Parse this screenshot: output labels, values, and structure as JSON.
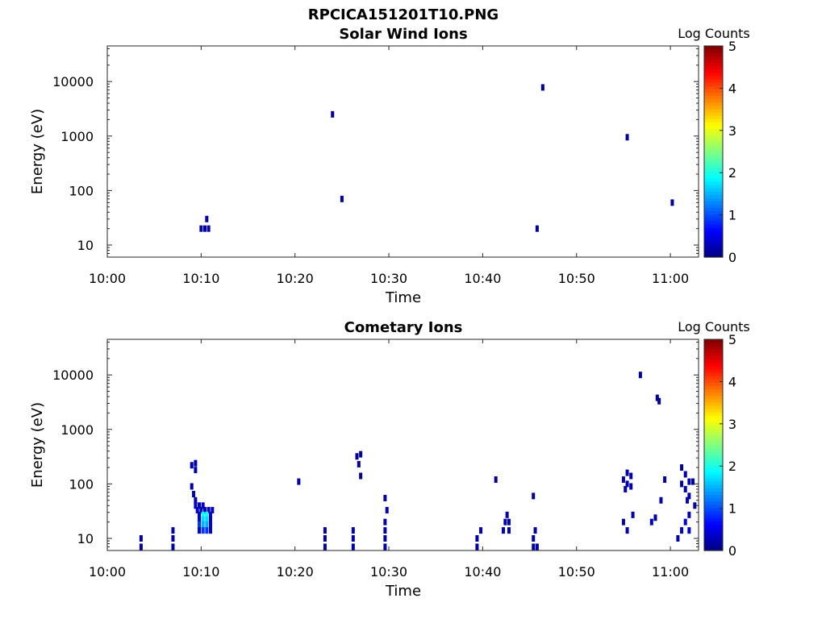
{
  "figure_title": "RPCICA151201T10.PNG",
  "colorbar": {
    "label": "Log Counts",
    "ticks": [
      "0",
      "1",
      "2",
      "3",
      "4",
      "5"
    ],
    "range": [
      0,
      5
    ],
    "colormap": "jet"
  },
  "chart_data": [
    {
      "type": "heatmap",
      "title": "Solar Wind Ions",
      "xlabel": "Time",
      "ylabel": "Energy (eV)",
      "x_ticks": [
        "10:00",
        "10:10",
        "10:20",
        "10:30",
        "10:40",
        "10:50",
        "11:00"
      ],
      "y_ticks": [
        "10",
        "100",
        "1000",
        "10000"
      ],
      "xlim": [
        "10:00",
        "11:03"
      ],
      "ylim": [
        6,
        45000
      ],
      "y_scale": "log",
      "grid": false,
      "cells": [
        {
          "t": "10:10.0",
          "e": 20,
          "v": 0.2
        },
        {
          "t": "10:10.4",
          "e": 20,
          "v": 0.2
        },
        {
          "t": "10:10.8",
          "e": 20,
          "v": 0.2
        },
        {
          "t": "10:10.6",
          "e": 30,
          "v": 0.2
        },
        {
          "t": "10:24.0",
          "e": 2500,
          "v": 0.1
        },
        {
          "t": "10:25.0",
          "e": 70,
          "v": 0.1
        },
        {
          "t": "10:45.8",
          "e": 20,
          "v": 0.1
        },
        {
          "t": "10:46.4",
          "e": 7800,
          "v": 0.1
        },
        {
          "t": "10:55.4",
          "e": 950,
          "v": 0.1
        },
        {
          "t": "11:00.2",
          "e": 60,
          "v": 0.1
        }
      ]
    },
    {
      "type": "heatmap",
      "title": "Cometary Ions",
      "xlabel": "Time",
      "ylabel": "Energy (eV)",
      "x_ticks": [
        "10:00",
        "10:10",
        "10:20",
        "10:30",
        "10:40",
        "10:50",
        "11:00"
      ],
      "y_ticks": [
        "10",
        "100",
        "1000",
        "10000"
      ],
      "xlim": [
        "10:00",
        "11:03"
      ],
      "ylim": [
        6,
        45000
      ],
      "y_scale": "log",
      "grid": false,
      "cells": [
        {
          "t": "10:03.6",
          "e": 7,
          "v": 0.2
        },
        {
          "t": "10:03.6",
          "e": 10,
          "v": 0.2
        },
        {
          "t": "10:07.0",
          "e": 7,
          "v": 0.2
        },
        {
          "t": "10:07.0",
          "e": 10,
          "v": 0.2
        },
        {
          "t": "10:07.0",
          "e": 14,
          "v": 0.2
        },
        {
          "t": "10:09.0",
          "e": 220,
          "v": 0.2
        },
        {
          "t": "10:09.4",
          "e": 240,
          "v": 0.2
        },
        {
          "t": "10:09.4",
          "e": 180,
          "v": 0.2
        },
        {
          "t": "10:09.0",
          "e": 90,
          "v": 0.2
        },
        {
          "t": "10:09.2",
          "e": 65,
          "v": 0.2
        },
        {
          "t": "10:09.4",
          "e": 50,
          "v": 0.2
        },
        {
          "t": "10:09.4",
          "e": 40,
          "v": 0.3
        },
        {
          "t": "10:09.8",
          "e": 40,
          "v": 0.3
        },
        {
          "t": "10:10.2",
          "e": 40,
          "v": 0.3
        },
        {
          "t": "10:09.6",
          "e": 33,
          "v": 0.3
        },
        {
          "t": "10:10.0",
          "e": 33,
          "v": 0.3
        },
        {
          "t": "10:10.4",
          "e": 33,
          "v": 0.3
        },
        {
          "t": "10:10.8",
          "e": 33,
          "v": 0.3
        },
        {
          "t": "10:11.2",
          "e": 33,
          "v": 0.3
        },
        {
          "t": "10:09.8",
          "e": 27,
          "v": 0.4
        },
        {
          "t": "10:10.2",
          "e": 27,
          "v": 1.9
        },
        {
          "t": "10:10.6",
          "e": 27,
          "v": 1.9
        },
        {
          "t": "10:11.0",
          "e": 27,
          "v": 0.4
        },
        {
          "t": "10:09.8",
          "e": 22,
          "v": 0.4
        },
        {
          "t": "10:10.2",
          "e": 22,
          "v": 1.7
        },
        {
          "t": "10:10.6",
          "e": 22,
          "v": 1.7
        },
        {
          "t": "10:11.0",
          "e": 22,
          "v": 0.4
        },
        {
          "t": "10:09.8",
          "e": 18,
          "v": 0.9
        },
        {
          "t": "10:10.2",
          "e": 18,
          "v": 1.5
        },
        {
          "t": "10:10.6",
          "e": 18,
          "v": 1.5
        },
        {
          "t": "10:11.0",
          "e": 18,
          "v": 0.4
        },
        {
          "t": "10:09.8",
          "e": 14,
          "v": 0.4
        },
        {
          "t": "10:10.2",
          "e": 14,
          "v": 0.9
        },
        {
          "t": "10:10.6",
          "e": 14,
          "v": 0.9
        },
        {
          "t": "10:11.0",
          "e": 14,
          "v": 0.4
        },
        {
          "t": "10:20.4",
          "e": 110,
          "v": 0.2
        },
        {
          "t": "10:23.2",
          "e": 7,
          "v": 0.2
        },
        {
          "t": "10:23.2",
          "e": 10,
          "v": 0.2
        },
        {
          "t": "10:23.2",
          "e": 14,
          "v": 0.2
        },
        {
          "t": "10:26.2",
          "e": 7,
          "v": 0.2
        },
        {
          "t": "10:26.2",
          "e": 10,
          "v": 0.2
        },
        {
          "t": "10:26.2",
          "e": 14,
          "v": 0.2
        },
        {
          "t": "10:26.6",
          "e": 320,
          "v": 0.1
        },
        {
          "t": "10:27.0",
          "e": 350,
          "v": 0.1
        },
        {
          "t": "10:26.8",
          "e": 230,
          "v": 0.1
        },
        {
          "t": "10:27.0",
          "e": 140,
          "v": 0.1
        },
        {
          "t": "10:29.6",
          "e": 55,
          "v": 0.2
        },
        {
          "t": "10:29.6",
          "e": 20,
          "v": 0.2
        },
        {
          "t": "10:29.6",
          "e": 14,
          "v": 0.2
        },
        {
          "t": "10:29.6",
          "e": 10,
          "v": 0.2
        },
        {
          "t": "10:29.6",
          "e": 7,
          "v": 0.2
        },
        {
          "t": "10:29.8",
          "e": 33,
          "v": 0.2
        },
        {
          "t": "10:39.4",
          "e": 7,
          "v": 0.2
        },
        {
          "t": "10:39.4",
          "e": 10,
          "v": 0.2
        },
        {
          "t": "10:39.8",
          "e": 14,
          "v": 0.2
        },
        {
          "t": "10:41.4",
          "e": 120,
          "v": 0.1
        },
        {
          "t": "10:42.2",
          "e": 14,
          "v": 0.2
        },
        {
          "t": "10:42.4",
          "e": 20,
          "v": 0.2
        },
        {
          "t": "10:42.8",
          "e": 20,
          "v": 0.2
        },
        {
          "t": "10:42.8",
          "e": 14,
          "v": 0.2
        },
        {
          "t": "10:42.6",
          "e": 27,
          "v": 0.2
        },
        {
          "t": "10:45.4",
          "e": 60,
          "v": 0.1
        },
        {
          "t": "10:45.4",
          "e": 7,
          "v": 0.2
        },
        {
          "t": "10:45.4",
          "e": 10,
          "v": 0.2
        },
        {
          "t": "10:45.6",
          "e": 14,
          "v": 0.2
        },
        {
          "t": "10:45.8",
          "e": 7,
          "v": 0.2
        },
        {
          "t": "10:55.0",
          "e": 120,
          "v": 0.2
        },
        {
          "t": "10:55.4",
          "e": 160,
          "v": 0.2
        },
        {
          "t": "10:55.8",
          "e": 140,
          "v": 0.2
        },
        {
          "t": "10:55.4",
          "e": 100,
          "v": 0.2
        },
        {
          "t": "10:55.8",
          "e": 90,
          "v": 0.2
        },
        {
          "t": "10:55.2",
          "e": 80,
          "v": 0.2
        },
        {
          "t": "10:55.0",
          "e": 20,
          "v": 0.2
        },
        {
          "t": "10:55.4",
          "e": 14,
          "v": 0.2
        },
        {
          "t": "10:56.0",
          "e": 27,
          "v": 0.2
        },
        {
          "t": "10:56.8",
          "e": 10000,
          "v": 0.1
        },
        {
          "t": "10:58.0",
          "e": 20,
          "v": 0.2
        },
        {
          "t": "10:58.4",
          "e": 24,
          "v": 0.2
        },
        {
          "t": "10:58.6",
          "e": 3800,
          "v": 0.1
        },
        {
          "t": "10:58.8",
          "e": 3300,
          "v": 0.1
        },
        {
          "t": "10:59.0",
          "e": 50,
          "v": 0.2
        },
        {
          "t": "10:59.4",
          "e": 120,
          "v": 0.1
        },
        {
          "t": "11:00.8",
          "e": 10,
          "v": 0.2
        },
        {
          "t": "11:01.2",
          "e": 14,
          "v": 0.4
        },
        {
          "t": "11:01.6",
          "e": 20,
          "v": 0.4
        },
        {
          "t": "11:01.2",
          "e": 200,
          "v": 0.2
        },
        {
          "t": "11:01.6",
          "e": 150,
          "v": 0.2
        },
        {
          "t": "11:01.2",
          "e": 100,
          "v": 0.2
        },
        {
          "t": "11:01.6",
          "e": 80,
          "v": 0.2
        },
        {
          "t": "11:02.0",
          "e": 60,
          "v": 0.2
        },
        {
          "t": "11:01.8",
          "e": 50,
          "v": 0.2
        },
        {
          "t": "11:02.0",
          "e": 110,
          "v": 0.2
        },
        {
          "t": "11:02.4",
          "e": 110,
          "v": 0.2
        },
        {
          "t": "11:02.6",
          "e": 40,
          "v": 0.2
        },
        {
          "t": "11:02.0",
          "e": 27,
          "v": 0.2
        },
        {
          "t": "11:02.0",
          "e": 14,
          "v": 0.4
        }
      ]
    }
  ]
}
